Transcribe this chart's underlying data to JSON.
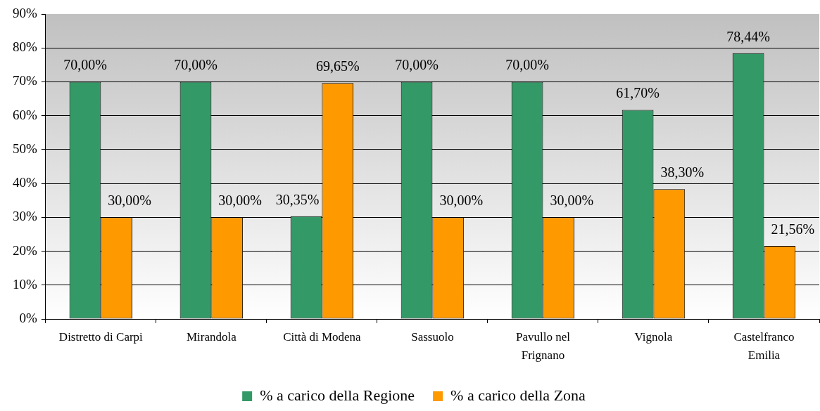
{
  "chart_data": {
    "type": "bar",
    "categories": [
      "Distretto di Carpi",
      "Mirandola",
      "Città di Modena",
      "Sassuolo",
      "Pavullo nel Frignano",
      "Vignola",
      "Castelfranco Emilia"
    ],
    "series": [
      {
        "name": "% a carico della Regione",
        "color": "#339966",
        "values": [
          70,
          70,
          30.35,
          70,
          70,
          61.7,
          78.44
        ],
        "value_labels": [
          "70,00%",
          "70,00%",
          "30,35%",
          "70,00%",
          "70,00%",
          "61,70%",
          "78,44%"
        ]
      },
      {
        "name": "% a carico della Zona",
        "color": "#ff9900",
        "values": [
          30,
          30,
          69.65,
          30,
          30,
          38.3,
          21.56
        ],
        "value_labels": [
          "30,00%",
          "30,00%",
          "69,65%",
          "30,00%",
          "30,00%",
          "38,30%",
          "21,56%"
        ]
      }
    ],
    "ylim": [
      0,
      90
    ],
    "yticks": [
      {
        "value": 0,
        "label": "0%"
      },
      {
        "value": 10,
        "label": "10%"
      },
      {
        "value": 20,
        "label": "20%"
      },
      {
        "value": 30,
        "label": "30%"
      },
      {
        "value": 40,
        "label": "40%"
      },
      {
        "value": 50,
        "label": "50%"
      },
      {
        "value": 60,
        "label": "60%"
      },
      {
        "value": 70,
        "label": "70%"
      },
      {
        "value": 80,
        "label": "80%"
      },
      {
        "value": 90,
        "label": "90%"
      }
    ],
    "grid": "y",
    "legend": "bottom"
  }
}
